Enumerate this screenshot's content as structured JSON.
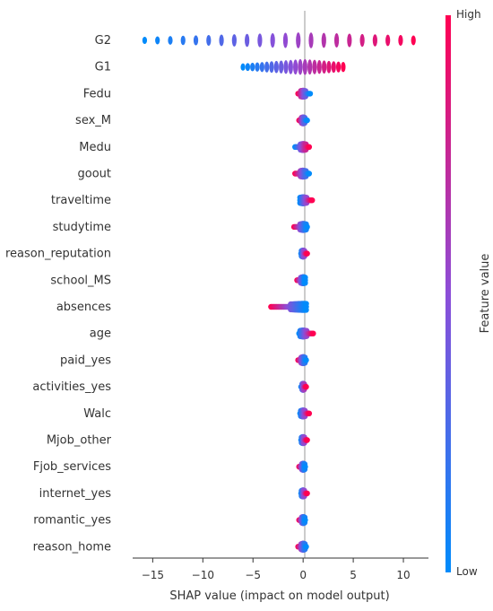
{
  "chart_data": {
    "type": "scatter",
    "subtype": "shap_beeswarm_summary",
    "xlabel": "SHAP value (impact on model output)",
    "xlim": [
      -17,
      12.5
    ],
    "xticks": [
      -15,
      -10,
      -5,
      0,
      5,
      10
    ],
    "xtick_labels": [
      "−15",
      "−10",
      "−5",
      "0",
      "5",
      "10"
    ],
    "grid": false,
    "colorbar": {
      "label": "Feature value",
      "high_label": "High",
      "low_label": "Low",
      "low_color": "#008bfb",
      "high_color": "#ff0052",
      "placement": "right"
    },
    "features": [
      {
        "name": "G2",
        "min": -15.8,
        "max": 11,
        "low_side": "left"
      },
      {
        "name": "G1",
        "min": -6,
        "max": 4,
        "low_side": "left"
      },
      {
        "name": "Fedu",
        "min": -0.5,
        "max": 0.7,
        "low_side": "right"
      },
      {
        "name": "sex_M",
        "min": -0.4,
        "max": 0.4,
        "low_side": "right"
      },
      {
        "name": "Medu",
        "min": -0.8,
        "max": 0.6,
        "low_side": "left"
      },
      {
        "name": "goout",
        "min": -0.8,
        "max": 0.6,
        "low_side": "right"
      },
      {
        "name": "traveltime",
        "min": -0.3,
        "max": 0.9,
        "low_side": "left"
      },
      {
        "name": "studytime",
        "min": -0.9,
        "max": 0.4,
        "low_side": "right"
      },
      {
        "name": "reason_reputation",
        "min": -0.2,
        "max": 0.4,
        "low_side": "left"
      },
      {
        "name": "school_MS",
        "min": -0.6,
        "max": 0.2,
        "low_side": "right"
      },
      {
        "name": "absences",
        "min": -3.2,
        "max": 0.3,
        "low_side": "right"
      },
      {
        "name": "age",
        "min": -0.4,
        "max": 1.0,
        "low_side": "left"
      },
      {
        "name": "paid_yes",
        "min": -0.5,
        "max": 0.3,
        "low_side": "right"
      },
      {
        "name": "activities_yes",
        "min": -0.2,
        "max": 0.3,
        "low_side": "left"
      },
      {
        "name": "Walc",
        "min": -0.3,
        "max": 0.6,
        "low_side": "left"
      },
      {
        "name": "Mjob_other",
        "min": -0.2,
        "max": 0.4,
        "low_side": "left"
      },
      {
        "name": "Fjob_services",
        "min": -0.4,
        "max": 0.2,
        "low_side": "right"
      },
      {
        "name": "internet_yes",
        "min": -0.2,
        "max": 0.4,
        "low_side": "left"
      },
      {
        "name": "romantic_yes",
        "min": -0.4,
        "max": 0.2,
        "low_side": "right"
      },
      {
        "name": "reason_home",
        "min": -0.5,
        "max": 0.3,
        "low_side": "right"
      }
    ]
  }
}
